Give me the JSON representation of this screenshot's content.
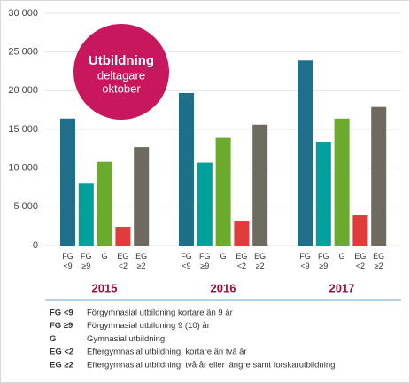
{
  "chart_data": {
    "type": "bar",
    "groups": [
      "2015",
      "2016",
      "2017"
    ],
    "series": [
      {
        "name": "FG <9",
        "description": "Förgymnasial utbildning kortare än 9 år",
        "color": "#1f6f8b",
        "values": [
          16400,
          19700,
          23900
        ]
      },
      {
        "name": "FG ≥9",
        "description": "Förgymnasial utbildning 9 (10) år",
        "color": "#00a19a",
        "values": [
          8100,
          10700,
          13400
        ]
      },
      {
        "name": "G",
        "description": "Gymnasial utbildning",
        "color": "#6aab2e",
        "values": [
          10800,
          13900,
          16400
        ]
      },
      {
        "name": "EG <2",
        "description": "Eftergymnasial utbildning, kortare än två år",
        "color": "#e03c3c",
        "values": [
          2400,
          3200,
          3900
        ]
      },
      {
        "name": "EG ≥2",
        "description": "Eftergymnasial utbildning, två år eller längre samt forskarutbildning",
        "color": "#6e6a60",
        "values": [
          12700,
          15600,
          17900
        ]
      }
    ],
    "ylim": [
      0,
      30000
    ],
    "yticks": [
      0,
      {
        "value": 5000,
        "label": "5 000"
      },
      {
        "value": 10000,
        "label": "10 000"
      },
      {
        "value": 15000,
        "label": "15 000"
      },
      {
        "value": 20000,
        "label": "20 000"
      },
      {
        "value": 25000,
        "label": "25 000"
      },
      {
        "value": 30000,
        "label": "30 000"
      }
    ],
    "grid": true,
    "badge": {
      "title": "Utbildning",
      "lines": [
        "deltagare",
        "oktober"
      ],
      "color": "#c8175d"
    }
  }
}
